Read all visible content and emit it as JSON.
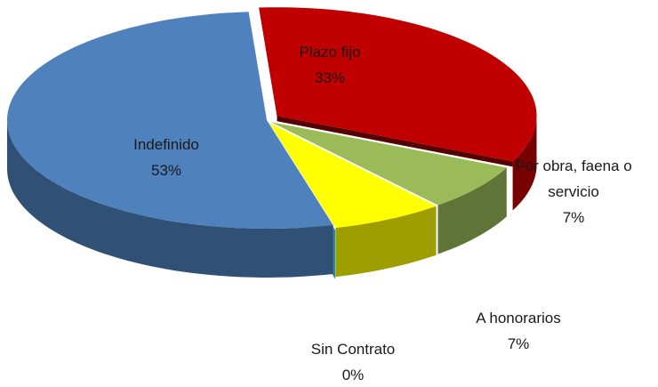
{
  "chart_data": {
    "type": "pie3d",
    "categories": [
      "Plazo fijo",
      "Por obra, faena o servicio",
      "A honorarios",
      "Sin Contrato",
      "Indefinido"
    ],
    "values": [
      33,
      7,
      7,
      0,
      53
    ],
    "value_labels": [
      "33%",
      "7%",
      "7%",
      "0%",
      "53%"
    ],
    "colors": [
      "#c00000",
      "#9bbb59",
      "#ffff00",
      "#31859c",
      "#4f81bd"
    ]
  }
}
